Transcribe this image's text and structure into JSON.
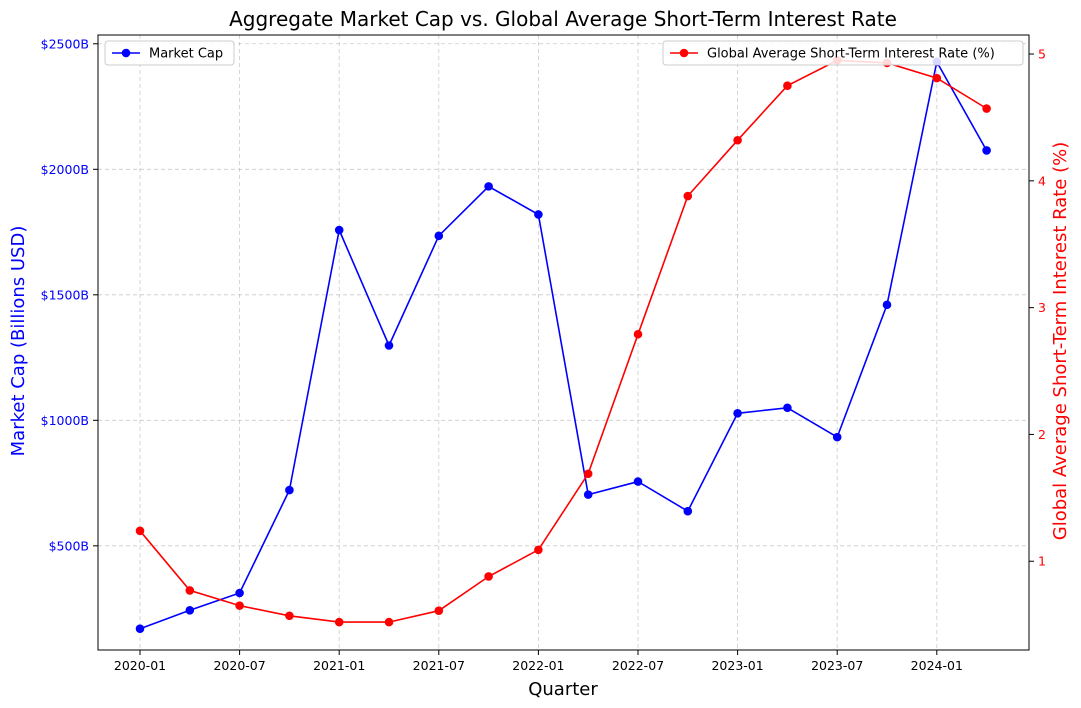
{
  "chart_data": {
    "type": "line",
    "title": "Aggregate Market Cap vs. Global Average Short-Term Interest Rate",
    "xlabel": "Quarter",
    "x": [
      "2020-01",
      "2020-04",
      "2020-07",
      "2020-10",
      "2021-01",
      "2021-04",
      "2021-07",
      "2021-10",
      "2022-01",
      "2022-04",
      "2022-07",
      "2022-10",
      "2023-01",
      "2023-04",
      "2023-07",
      "2023-10",
      "2024-01",
      "2024-04"
    ],
    "xticks": [
      "2020-01",
      "2020-07",
      "2021-01",
      "2021-07",
      "2022-01",
      "2022-07",
      "2023-01",
      "2023-07",
      "2024-01"
    ],
    "grid": true,
    "left_axis": {
      "label": "Market Cap (Billions USD)",
      "color": "#0000ff",
      "ylim": [
        85,
        2535
      ],
      "ticks": [
        500,
        1000,
        1500,
        2000,
        2500
      ],
      "tick_labels": [
        "$500B",
        "$1000B",
        "$1500B",
        "$2000B",
        "$2500B"
      ]
    },
    "right_axis": {
      "label": "Global Average Short-Term Interest Rate (%)",
      "color": "#ff0000",
      "ylim": [
        0.3,
        5.15
      ],
      "ticks": [
        1,
        2,
        3,
        4,
        5
      ],
      "tick_labels": [
        "1",
        "2",
        "3",
        "4",
        "5"
      ]
    },
    "series": [
      {
        "name": "Market Cap",
        "axis": "left",
        "color": "#0000ff",
        "values": [
          170,
          243,
          312,
          722,
          1758,
          1298,
          1735,
          1932,
          1820,
          704,
          756,
          638,
          1028,
          1050,
          933,
          1460,
          2428,
          2075
        ]
      },
      {
        "name": "Global Average Short-Term Interest Rate (%)",
        "axis": "right",
        "color": "#ff0000",
        "values": [
          1.24,
          0.77,
          0.65,
          0.57,
          0.52,
          0.52,
          0.61,
          0.88,
          1.09,
          1.69,
          2.79,
          3.88,
          4.32,
          4.75,
          4.95,
          4.93,
          4.81,
          4.57
        ]
      }
    ],
    "legends": [
      {
        "placement": "upper-left",
        "series": 0
      },
      {
        "placement": "upper-right",
        "series": 1
      }
    ]
  }
}
